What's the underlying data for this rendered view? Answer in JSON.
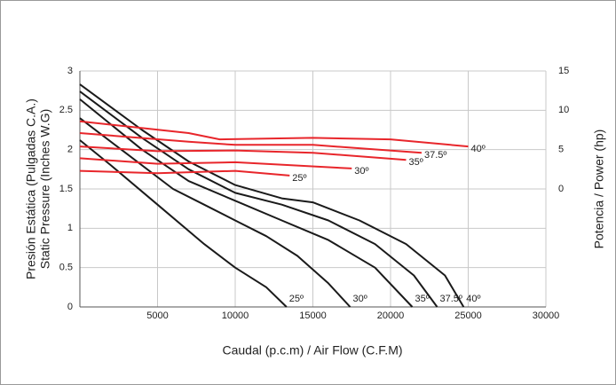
{
  "chart_data": {
    "type": "line",
    "x_label": "Caudal (p.c.m) / Air Flow (C.F.M)",
    "y_label": [
      "Presión Estática (Pulgadas C.A.)",
      "Static Pressure (Inches W.G)"
    ],
    "y2_label": "Potencia / Power (hp)",
    "xlim": [
      0,
      30000
    ],
    "xticks": [
      5000,
      10000,
      15000,
      20000,
      25000,
      30000
    ],
    "ylim": [
      0,
      3
    ],
    "yticks": [
      0,
      0.5,
      1,
      1.5,
      2,
      2.5,
      3
    ],
    "y2lim": [
      -15,
      15
    ],
    "y2ticks": [
      0,
      5,
      10,
      15
    ],
    "grid": true,
    "series": [
      {
        "name": "25º",
        "color": "#1a1a1a",
        "x": [
          0,
          2000,
          5000,
          8000,
          10000,
          12000,
          13300
        ],
        "values": [
          2.12,
          1.8,
          1.3,
          0.8,
          0.5,
          0.25,
          0
        ]
      },
      {
        "name": "30º",
        "color": "#1a1a1a",
        "x": [
          0,
          3000,
          6000,
          8000,
          10000,
          12000,
          14000,
          16000,
          17400
        ],
        "values": [
          2.4,
          1.95,
          1.5,
          1.3,
          1.1,
          0.9,
          0.65,
          0.3,
          0
        ]
      },
      {
        "name": "35º",
        "color": "#1a1a1a",
        "x": [
          0,
          4000,
          7000,
          10000,
          13000,
          16000,
          19000,
          21400
        ],
        "values": [
          2.64,
          2.0,
          1.6,
          1.35,
          1.1,
          0.85,
          0.5,
          0
        ]
      },
      {
        "name": "37.5º",
        "color": "#1a1a1a",
        "x": [
          0,
          4000,
          7000,
          10000,
          13000,
          16000,
          19000,
          21500,
          23000
        ],
        "values": [
          2.74,
          2.15,
          1.75,
          1.45,
          1.3,
          1.1,
          0.8,
          0.4,
          0
        ]
      },
      {
        "name": "40º",
        "color": "#1a1a1a",
        "x": [
          0,
          4000,
          7000,
          10000,
          13000,
          15000,
          18000,
          21000,
          23500,
          24700
        ],
        "values": [
          2.83,
          2.25,
          1.85,
          1.55,
          1.38,
          1.33,
          1.1,
          0.8,
          0.4,
          0
        ]
      },
      {
        "name": "25º",
        "color": "#e8262b",
        "axis": "y2",
        "x": [
          0,
          5000,
          10000,
          13500
        ],
        "values": [
          2.3,
          2.0,
          2.3,
          1.7
        ]
      },
      {
        "name": "30º",
        "color": "#e8262b",
        "axis": "y2",
        "x": [
          0,
          5000,
          10000,
          17500
        ],
        "values": [
          3.9,
          3.2,
          3.4,
          2.6
        ]
      },
      {
        "name": "35º",
        "color": "#e8262b",
        "axis": "y2",
        "x": [
          0,
          5000,
          10000,
          15000,
          21000
        ],
        "values": [
          5.4,
          4.8,
          4.9,
          4.6,
          3.7
        ]
      },
      {
        "name": "37.5º",
        "color": "#e8262b",
        "axis": "y2",
        "x": [
          0,
          7000,
          10000,
          15000,
          22000
        ],
        "values": [
          7.1,
          6.0,
          5.6,
          5.6,
          4.6
        ]
      },
      {
        "name": "40º",
        "color": "#e8262b",
        "axis": "y2",
        "x": [
          0,
          7000,
          9000,
          15000,
          20000,
          25000
        ],
        "values": [
          8.6,
          7.1,
          6.3,
          6.5,
          6.3,
          5.4
        ]
      }
    ]
  }
}
